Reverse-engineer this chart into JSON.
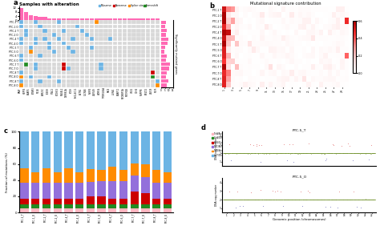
{
  "panel_a": {
    "title": "Samples with alteration",
    "bar_color": "#FF69B4",
    "legend_colors_order": [
      "Missense",
      "Nonsense",
      "Splice site",
      "Frameshift"
    ],
    "legend_colors": {
      "Missense": "#6CB4E4",
      "Nonsense": "#CC0000",
      "Splice site": "#FF8C00",
      "Frameshift": "#228B22"
    },
    "top_bar_values": [
      12,
      8,
      5,
      4,
      3,
      3,
      2,
      2,
      2,
      2,
      2,
      2,
      2,
      2,
      2,
      2,
      2,
      2,
      2,
      2,
      2,
      2,
      2,
      2,
      2,
      2,
      2,
      2,
      2,
      2,
      2,
      2,
      2,
      2,
      2,
      2,
      2,
      1,
      1,
      1,
      1
    ],
    "ylabel_side": "Significantly mutated genes",
    "cell_colors": {
      "Missense": "#6CB4E4",
      "Nonsense": "#CC0000",
      "Splice site": "#FF8C00",
      "Frameshift": "#228B22",
      "background": "#D8D8D8"
    },
    "gene_names": [
      "BRAF",
      "HBPP4",
      "AGAP4",
      "TENM3",
      "NF1B",
      "FAM21C",
      "PLEKH",
      "STAC2",
      "PCDH15",
      "MAGEL2",
      "DYRRK1A",
      "PCDH",
      "SHGLEC11",
      "ACTN1",
      "CLCN46",
      "NLRP4",
      "ZNF549",
      "WDR54",
      "TMEM184A",
      "MKI4",
      "LILRA1",
      "ANAPC1",
      "MYOBBP1A",
      "MUTM2B",
      "UGG1",
      "CDH4",
      "NHPPPE",
      "PIEZO1",
      "ZNF28",
      "FGFR"
    ],
    "mutations": [
      [
        0,
        0,
        "#6CB4E4"
      ],
      [
        0,
        3,
        "#6CB4E4"
      ],
      [
        0,
        8,
        "#6CB4E4"
      ],
      [
        0,
        16,
        "#FF8C00"
      ],
      [
        1,
        0,
        "#6CB4E4"
      ],
      [
        1,
        4,
        "#6CB4E4"
      ],
      [
        1,
        12,
        "#6CB4E4"
      ],
      [
        2,
        1,
        "#6CB4E4"
      ],
      [
        2,
        5,
        "#6CB4E4"
      ],
      [
        2,
        9,
        "#6CB4E4"
      ],
      [
        2,
        13,
        "#6CB4E4"
      ],
      [
        3,
        1,
        "#6CB4E4"
      ],
      [
        3,
        7,
        "#6CB4E4"
      ],
      [
        3,
        14,
        "#6CB4E4"
      ],
      [
        4,
        0,
        "#6CB4E4"
      ],
      [
        4,
        3,
        "#6CB4E4"
      ],
      [
        4,
        5,
        "#6CB4E4"
      ],
      [
        4,
        8,
        "#6CB4E4"
      ],
      [
        4,
        11,
        "#6CB4E4"
      ],
      [
        4,
        15,
        "#6CB4E4"
      ],
      [
        4,
        19,
        "#6CB4E4"
      ],
      [
        5,
        0,
        "#6CB4E4"
      ],
      [
        5,
        3,
        "#6CB4E4"
      ],
      [
        5,
        6,
        "#6CB4E4"
      ],
      [
        5,
        9,
        "#6CB4E4"
      ],
      [
        6,
        2,
        "#6CB4E4"
      ],
      [
        6,
        6,
        "#6CB4E4"
      ],
      [
        6,
        10,
        "#6CB4E4"
      ],
      [
        6,
        15,
        "#6CB4E4"
      ],
      [
        7,
        2,
        "#FF8C00"
      ],
      [
        7,
        7,
        "#6CB4E4"
      ],
      [
        7,
        11,
        "#6CB4E4"
      ],
      [
        8,
        0,
        "#6CB4E4"
      ],
      [
        8,
        4,
        "#6CB4E4"
      ],
      [
        9,
        0,
        "#6CB4E4"
      ],
      [
        10,
        1,
        "#228B22"
      ],
      [
        10,
        3,
        "#6CB4E4"
      ],
      [
        10,
        9,
        "#CC0000"
      ],
      [
        10,
        17,
        "#6CB4E4"
      ],
      [
        11,
        3,
        "#6CB4E4"
      ],
      [
        11,
        9,
        "#CC0000"
      ],
      [
        11,
        10,
        "#6CB4E4"
      ],
      [
        11,
        17,
        "#6CB4E4"
      ],
      [
        12,
        0,
        "#6CB4E4"
      ],
      [
        12,
        28,
        "#CC0000"
      ],
      [
        13,
        0,
        "#FF8C00"
      ],
      [
        13,
        2,
        "#6CB4E4"
      ],
      [
        13,
        6,
        "#6CB4E4"
      ],
      [
        13,
        28,
        "#228B22"
      ],
      [
        14,
        0,
        "#6CB4E4"
      ],
      [
        14,
        4,
        "#6CB4E4"
      ],
      [
        14,
        8,
        "#6CB4E4"
      ],
      [
        14,
        29,
        "#6CB4E4"
      ],
      [
        15,
        0,
        "#FF8C00"
      ],
      [
        15,
        29,
        "#FF8C00"
      ]
    ],
    "side_vals": [
      6,
      5,
      7,
      6,
      9,
      8,
      5,
      4,
      7,
      6,
      11,
      10,
      7,
      6,
      9,
      7
    ]
  },
  "panel_b": {
    "title": "Mutational signature contribution",
    "row_labels": [
      "PTC-1 T",
      "PTC-1 O",
      "PTC-2 T",
      "PTC-2 O",
      "PTC-4 T",
      "PTC-4 O",
      "PTC-5 T",
      "PTC-5 O",
      "PTC-6 T",
      "PTC-6 O",
      "PTC-7 T",
      "PTC-7 O",
      "PTC-8 T",
      "PTC-8 O"
    ],
    "n_cols": 30,
    "colorbar_ticks": [
      0,
      0.2,
      0.4,
      0.6
    ]
  },
  "panel_c": {
    "categories": [
      "PTC-1_T",
      "PTC-1_O",
      "PTC-2_T",
      "PTC-2_O",
      "PTC-4_T",
      "PTC-4_O",
      "PTC-5_T",
      "PTC-5_O",
      "PTC-6_T",
      "PTC-6_O",
      "PTC-7_T",
      "PTC-7_O",
      "PTC-8_T",
      "PTC-8_O"
    ],
    "legend_labels": [
      "T>A/A>T",
      "C>A/G>T",
      "C>G/G>C",
      "T>C/A>G",
      "T>G/A>C",
      "C>T/G>A"
    ],
    "colors": [
      "#FFB6C1",
      "#228B22",
      "#CC0000",
      "#9370DB",
      "#FF8C00",
      "#6CB4E4"
    ],
    "data": [
      [
        5,
        5,
        5,
        5,
        5,
        5,
        5,
        5,
        5,
        5,
        5,
        5,
        5,
        5
      ],
      [
        5,
        5,
        5,
        5,
        5,
        5,
        5,
        5,
        5,
        5,
        5,
        5,
        5,
        5
      ],
      [
        7,
        7,
        7,
        7,
        7,
        7,
        10,
        10,
        7,
        7,
        16,
        14,
        7,
        7
      ],
      [
        20,
        20,
        20,
        20,
        20,
        20,
        18,
        19,
        22,
        22,
        20,
        20,
        20,
        20
      ],
      [
        18,
        13,
        18,
        13,
        18,
        13,
        16,
        14,
        18,
        14,
        15,
        16,
        16,
        13
      ],
      [
        45,
        50,
        45,
        50,
        45,
        50,
        46,
        47,
        43,
        47,
        39,
        40,
        47,
        50
      ]
    ],
    "ylabel": "Fraction of mutations (%)",
    "yticks": [
      0,
      20,
      40,
      60,
      80,
      100
    ]
  },
  "panel_d": {
    "title1": "PTC-5_T",
    "title2": "PTC-5_O",
    "xlabel": "Genomic position (chromosomes)",
    "ylabel": "DNA copy number",
    "colors_gain": "#CC0000",
    "colors_loss": "#00008B",
    "colors_diploid": "#6B8E23",
    "chr_labels": [
      "1",
      "2",
      "3",
      "4",
      "5",
      "6",
      "7",
      "8",
      "9",
      "10",
      "11",
      "12",
      "13",
      "14",
      "15",
      "16",
      "17",
      "18",
      "19",
      "20",
      "21",
      "22"
    ],
    "yticks": [
      1,
      2,
      3,
      4
    ],
    "ylim": [
      0.5,
      4.5
    ],
    "diploid_level": 2.0
  },
  "figure": {
    "bg_color": "#FFFFFF"
  }
}
